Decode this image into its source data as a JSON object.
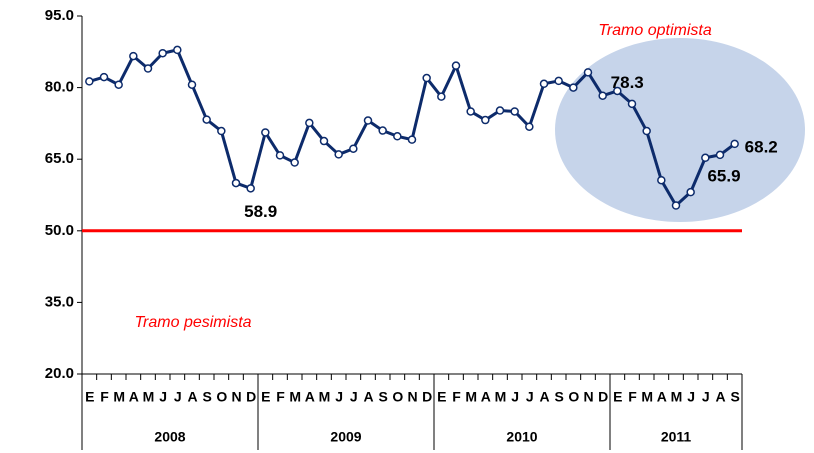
{
  "chart_data": {
    "type": "line",
    "categories": [
      "E",
      "F",
      "M",
      "A",
      "M",
      "J",
      "J",
      "A",
      "S",
      "O",
      "N",
      "D",
      "E",
      "F",
      "M",
      "A",
      "M",
      "J",
      "J",
      "A",
      "S",
      "O",
      "N",
      "D",
      "E",
      "F",
      "M",
      "A",
      "M",
      "J",
      "J",
      "A",
      "S",
      "O",
      "N",
      "D",
      "E",
      "F",
      "M",
      "A",
      "M",
      "J",
      "J",
      "A",
      "S"
    ],
    "category_groups": [
      "2008",
      "2009",
      "2010",
      "2011"
    ],
    "series": [
      {
        "color": "#0d2b6b",
        "values": [
          81.3,
          82.2,
          80.6,
          86.6,
          84.0,
          87.2,
          87.9,
          80.6,
          73.3,
          70.9,
          60.0,
          58.9,
          70.6,
          65.8,
          64.3,
          72.6,
          68.8,
          66.0,
          67.2,
          73.1,
          71.0,
          69.8,
          69.1,
          82.0,
          78.1,
          84.6,
          75.0,
          73.2,
          75.2,
          75.0,
          71.8,
          80.8,
          81.4,
          80.0,
          83.2,
          78.3,
          79.3,
          76.6,
          70.9,
          60.6,
          55.3,
          58.1,
          65.3,
          65.9,
          68.2
        ],
        "value_labels": [
          null,
          null,
          null,
          null,
          null,
          null,
          null,
          null,
          null,
          null,
          null,
          "58.9",
          null,
          null,
          null,
          null,
          null,
          null,
          null,
          null,
          null,
          null,
          null,
          null,
          null,
          null,
          null,
          null,
          null,
          null,
          null,
          null,
          null,
          null,
          null,
          "78.3",
          null,
          null,
          null,
          null,
          null,
          null,
          null,
          "65.9",
          "68.2"
        ]
      }
    ],
    "ylim": [
      20,
      95
    ],
    "yticks": [
      {
        "value": 20,
        "label": "20.0"
      },
      {
        "value": 35,
        "label": "35.0"
      },
      {
        "value": 50,
        "label": "50.0"
      },
      {
        "value": 65,
        "label": "65.0"
      },
      {
        "value": 80,
        "label": "80.0"
      },
      {
        "value": 95,
        "label": "95.0"
      }
    ],
    "reference_line": {
      "value": 50,
      "color": "#ff0000"
    },
    "annotations": [
      {
        "text": "Tramo optimista"
      },
      {
        "text": "Tramo pesimista"
      }
    ]
  }
}
